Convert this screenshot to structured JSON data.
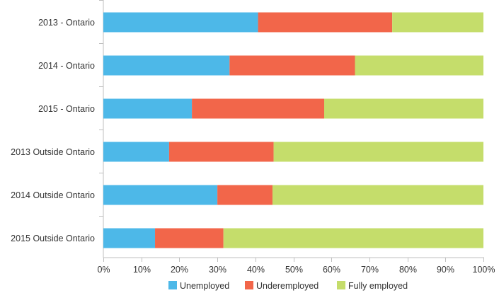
{
  "chart_data": {
    "type": "bar",
    "orientation": "horizontal",
    "stacked": "percent",
    "categories": [
      "2013 - Ontario",
      "2014 - Ontario",
      "2015 - Ontario",
      "2013 Outside Ontario",
      "2014 Outside Ontario",
      "2015 Outside Ontario"
    ],
    "series": [
      {
        "name": "Unemployed",
        "color": "#4db8e8",
        "values": [
          40.7,
          33.2,
          23.3,
          17.3,
          30.0,
          13.6
        ]
      },
      {
        "name": "Underemployed",
        "color": "#f2664a",
        "values": [
          35.3,
          33.0,
          34.8,
          27.5,
          14.5,
          18.0
        ]
      },
      {
        "name": "Fully employed",
        "color": "#c5dd6b",
        "values": [
          24.0,
          33.8,
          41.9,
          55.2,
          55.5,
          68.4
        ]
      }
    ],
    "x_ticks": [
      "0%",
      "10%",
      "20%",
      "30%",
      "40%",
      "50%",
      "60%",
      "70%",
      "80%",
      "90%",
      "100%"
    ],
    "xlim": [
      0,
      100
    ],
    "grid": false,
    "legend_position": "bottom"
  }
}
